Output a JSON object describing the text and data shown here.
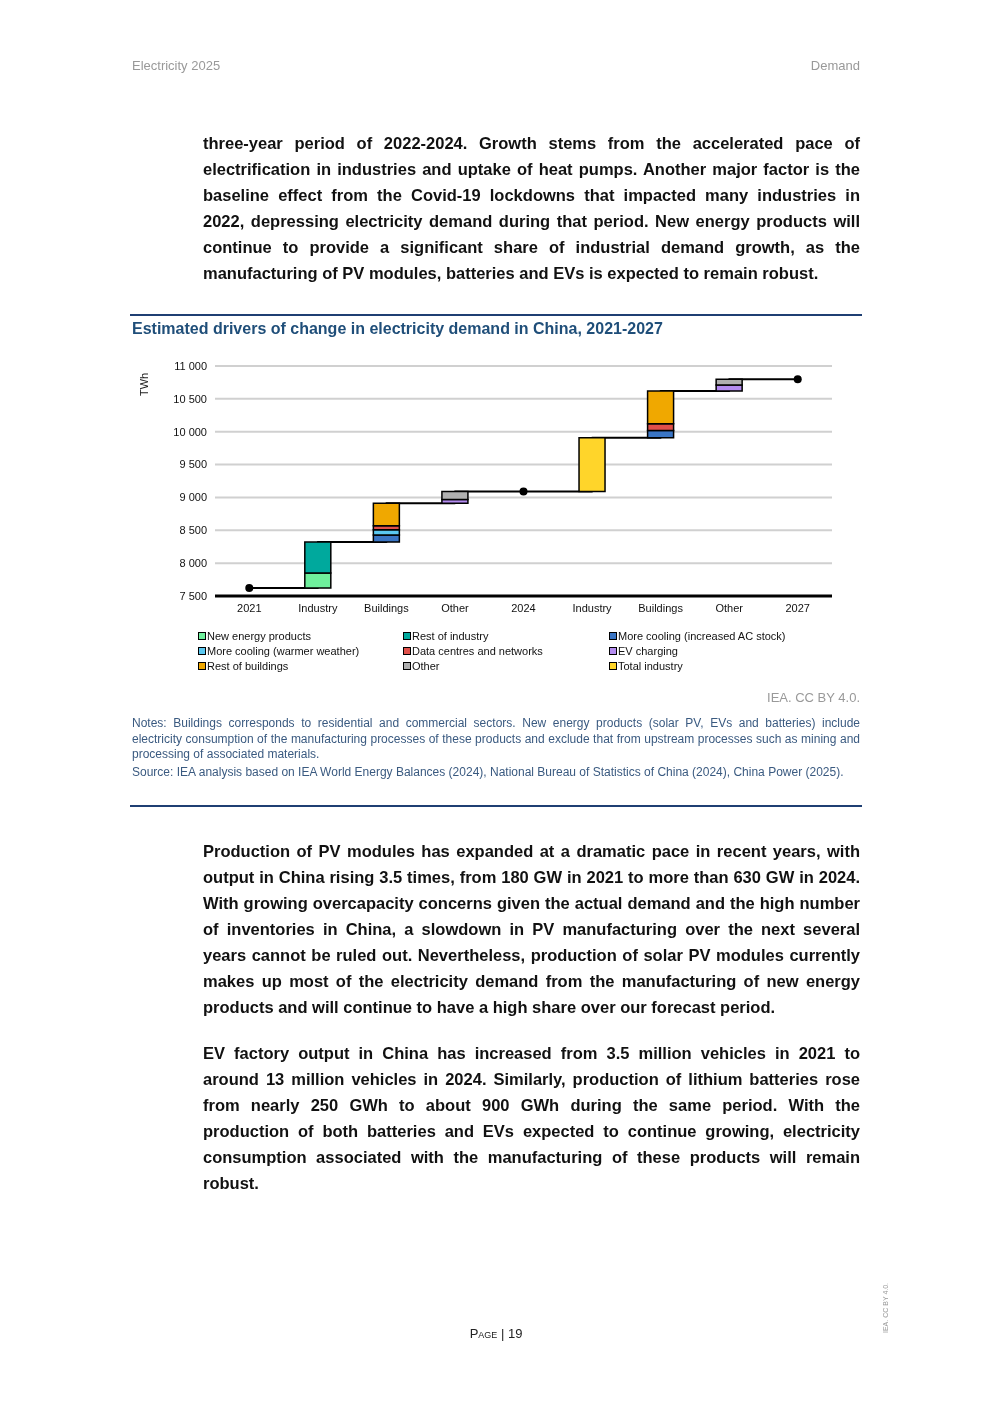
{
  "chart_data": {
    "type": "bar",
    "title": "Estimated drivers of change in electricity demand in China, 2021-2027",
    "ylabel": "TWh",
    "categories": [
      "2021",
      "Industry",
      "Buildings",
      "Other",
      "2024",
      "Industry",
      "Buildings",
      "Other",
      "2027"
    ],
    "series": [
      {
        "name": "New energy products",
        "color": "#6ef09c",
        "base": [
          null,
          7620,
          null,
          null,
          null,
          null,
          null,
          null,
          null
        ],
        "values": [
          null,
          230,
          null,
          null,
          null,
          null,
          null,
          null,
          null
        ]
      },
      {
        "name": "Rest of industry",
        "color": "#00a99d",
        "base": [
          null,
          7850,
          null,
          null,
          null,
          null,
          null,
          null,
          null
        ],
        "values": [
          null,
          470,
          null,
          null,
          null,
          null,
          null,
          null,
          null
        ]
      },
      {
        "name": "More cooling (increased AC stock)",
        "color": "#3a75c4",
        "base": [
          null,
          null,
          8320,
          null,
          null,
          null,
          9910,
          null,
          null
        ],
        "values": [
          null,
          null,
          110,
          null,
          null,
          null,
          110,
          null,
          null
        ]
      },
      {
        "name": "More cooling (warmer weather)",
        "color": "#5bc8f0",
        "base": [
          null,
          null,
          8430,
          null,
          null,
          null,
          null,
          null,
          null
        ],
        "values": [
          null,
          null,
          80,
          null,
          null,
          null,
          null,
          null,
          null
        ]
      },
      {
        "name": "Data centres and networks",
        "color": "#e0504a",
        "base": [
          null,
          null,
          8510,
          null,
          null,
          null,
          10020,
          null,
          null
        ],
        "values": [
          null,
          null,
          60,
          null,
          null,
          null,
          100,
          null,
          null
        ]
      },
      {
        "name": "EV charging",
        "color": "#b48cf0",
        "base": [
          null,
          null,
          null,
          8910,
          null,
          null,
          null,
          10620,
          null
        ],
        "values": [
          null,
          null,
          null,
          60,
          null,
          null,
          null,
          90,
          null
        ]
      },
      {
        "name": "Rest of buildings",
        "color": "#f0a800",
        "base": [
          null,
          null,
          8570,
          null,
          null,
          null,
          10120,
          null,
          null
        ],
        "values": [
          null,
          null,
          340,
          null,
          null,
          null,
          500,
          null,
          null
        ]
      },
      {
        "name": "Other",
        "color": "#b0b0b0",
        "base": [
          null,
          null,
          null,
          8970,
          null,
          null,
          null,
          10710,
          null
        ],
        "values": [
          null,
          null,
          null,
          120,
          null,
          null,
          null,
          90,
          null
        ]
      },
      {
        "name": "Total industry",
        "color": "#ffd52a",
        "base": [
          null,
          null,
          null,
          null,
          null,
          9090,
          null,
          null,
          null
        ],
        "values": [
          null,
          null,
          null,
          null,
          null,
          820,
          null,
          null,
          null
        ]
      },
      {
        "type": "step",
        "color": "#000000",
        "marker": "none",
        "values": [
          7620,
          8320,
          8910,
          9090,
          9090,
          9910,
          10620,
          10800,
          10800
        ]
      },
      {
        "type": "scatter",
        "color": "#000000",
        "marker": "circle",
        "values": [
          7620,
          null,
          null,
          null,
          9090,
          null,
          null,
          null,
          10800
        ]
      }
    ],
    "ylim": [
      7500,
      11000
    ],
    "yticks": [
      {
        "value": 7500,
        "label": "7 500"
      },
      {
        "value": 8000,
        "label": "8 000"
      },
      {
        "value": 8500,
        "label": "8 500"
      },
      {
        "value": 9000,
        "label": "9 000"
      },
      {
        "value": 9500,
        "label": "9 500"
      },
      {
        "value": 10000,
        "label": "10 000"
      },
      {
        "value": 10500,
        "label": "10 500"
      },
      {
        "value": 11000,
        "label": "11 000"
      }
    ],
    "grid": "y",
    "legend": "bottom",
    "annotations": [
      "Electricity 2025",
      "Demand",
      "three-year period of 2022-2024. Growth stems from the accelerated pace of electrification in industries and uptake of heat pumps. Another major factor is the baseline effect from the Covid-19 lockdowns that impacted many industries in 2022, depressing electricity demand during that period. New energy products will continue to provide a significant share of industrial demand growth, as the manufacturing of PV modules, batteries and EVs is expected to remain robust.",
      "IEA. CC BY 4.0.",
      "Notes: Buildings corresponds to residential and commercial sectors. New energy products (solar PV, EVs and batteries) include electricity consumption of the manufacturing processes of these products and exclude that from upstream processes such as mining and processing of associated materials.",
      "Source: IEA analysis based on IEA World Energy Balances (2024), National Bureau of Statistics of China (2024), China Power (2025).",
      "Production of PV modules has expanded at a dramatic pace in recent years, with output in China rising 3.5 times, from 180 GW in 2021 to more than 630 GW in 2024. With growing overcapacity concerns given the actual demand and the high number of inventories in China, a slowdown in PV manufacturing over the next several years cannot be ruled out. Nevertheless, production of solar PV modules currently makes up most of the electricity demand from the manufacturing of new energy products and will continue to have a high share over our forecast period.",
      "EV factory output in China has increased from 3.5 million vehicles in 2021 to around 13 million vehicles in 2024. Similarly, production of lithium batteries rose from nearly 250 GWh to about 900 GWh during the same period. With the production of both batteries and EVs expected to continue growing, electricity consumption associated with the manufacturing of these products will remain robust.",
      "Page | 19",
      "IEA. CC BY 4.0."
    ]
  }
}
